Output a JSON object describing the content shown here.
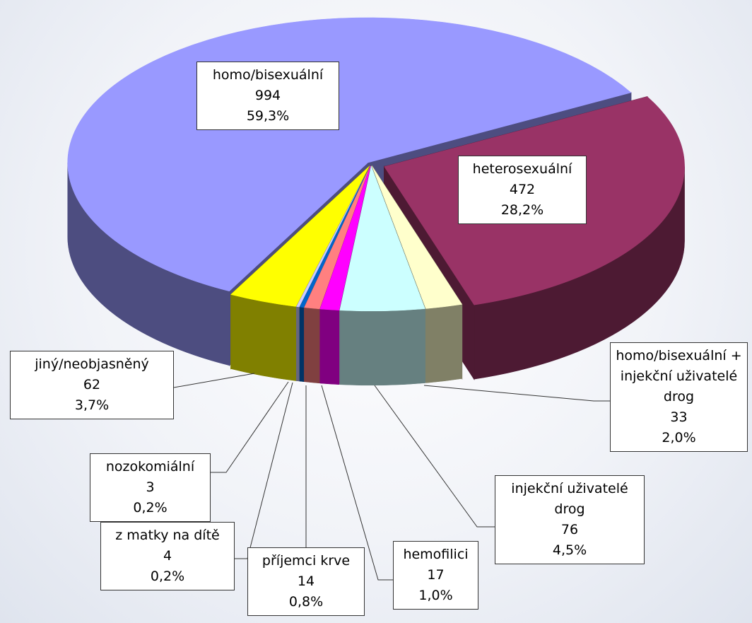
{
  "chart_data": {
    "type": "pie3d",
    "categories": [
      "homo/bisexuální",
      "heterosexuální",
      "homo/bisexuální + injekční uživatelé drog",
      "injekční uživatelé drog",
      "hemofilici",
      "příjemci krve",
      "z matky na dítě",
      "nozokomiální",
      "jiný/neobjasněný"
    ],
    "values": [
      994,
      472,
      33,
      76,
      17,
      14,
      4,
      3,
      62
    ],
    "percent_labels": [
      "59,3%",
      "28,2%",
      "2,0%",
      "4,5%",
      "1,0%",
      "0,8%",
      "0,2%",
      "0,2%",
      "3,7%"
    ],
    "colors": [
      "#9999ff",
      "#993366",
      "#ffffcc",
      "#ccffff",
      "#ff00ff",
      "#ff8080",
      "#0066cc",
      "#ccccff",
      "#ffff00"
    ]
  }
}
